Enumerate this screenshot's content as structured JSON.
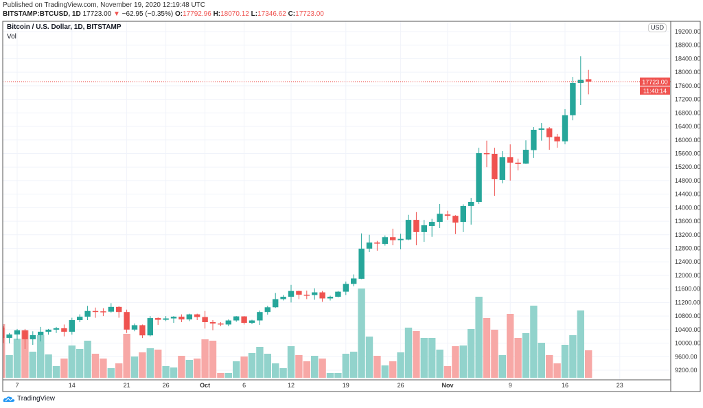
{
  "header": {
    "published": "Published on TradingView.com, November 19, 2020 12:19:48 UTC",
    "symbol": "BITSTAMP:BTCUSD, 1D",
    "last": "17723.00",
    "change": "−62.95 (−0.35%)",
    "o_label": "O:",
    "o": "17792.96",
    "h_label": "H:",
    "h": "18070.12",
    "l_label": "L:",
    "l": "17346.62",
    "c_label": "C:",
    "c": "17723.00",
    "down_icon": "triangle-down-icon"
  },
  "pane": {
    "title": "Bitcoin / U.S. Dollar, 1D, BITSTAMP",
    "vol_label": "Vol",
    "currency": "USD"
  },
  "price_marker": {
    "price": "17723.00",
    "countdown": "11:40:14"
  },
  "footer": {
    "brand": "TradingView"
  },
  "colors": {
    "up": "#26a69a",
    "down": "#ef5350",
    "vol_up": "#92d3cc",
    "vol_down": "#f7a8a6"
  },
  "chart_data": {
    "type": "candlestick",
    "title": "Bitcoin / U.S. Dollar, 1D, BITSTAMP",
    "ylim": [
      9000,
      19300
    ],
    "y_ticks": [
      "9200.00",
      "9600.00",
      "10000.00",
      "10400.00",
      "10800.00",
      "11200.00",
      "11600.00",
      "12000.00",
      "12400.00",
      "12800.00",
      "13200.00",
      "13600.00",
      "14000.00",
      "14400.00",
      "14800.00",
      "15200.00",
      "15600.00",
      "16000.00",
      "16400.00",
      "16800.00",
      "17200.00",
      "17600.00",
      "18000.00",
      "18400.00",
      "18800.00",
      "19200.00"
    ],
    "x_ticks": [
      {
        "label": "7",
        "date": "2020-09-07"
      },
      {
        "label": "14",
        "date": "2020-09-14"
      },
      {
        "label": "21",
        "date": "2020-09-21"
      },
      {
        "label": "26",
        "date": "2020-09-26"
      },
      {
        "label": "Oct",
        "date": "2020-10-01"
      },
      {
        "label": "6",
        "date": "2020-10-06"
      },
      {
        "label": "12",
        "date": "2020-10-12"
      },
      {
        "label": "19",
        "date": "2020-10-19"
      },
      {
        "label": "26",
        "date": "2020-10-26"
      },
      {
        "label": "Nov",
        "date": "2020-11-01"
      },
      {
        "label": "9",
        "date": "2020-11-09"
      },
      {
        "label": "16",
        "date": "2020-11-16"
      },
      {
        "label": "23",
        "date": "2020-11-23"
      }
    ],
    "grid": true,
    "columns": [
      "date",
      "open",
      "high",
      "low",
      "close",
      "volume_relative"
    ],
    "candles": [
      [
        "2020-09-05",
        10459,
        10500,
        10000,
        10155,
        78
      ],
      [
        "2020-09-06",
        10155,
        10300,
        9993,
        10256,
        33
      ],
      [
        "2020-09-07",
        10256,
        10420,
        10100,
        10378,
        57
      ],
      [
        "2020-09-08",
        10378,
        10420,
        9830,
        10114,
        69
      ],
      [
        "2020-09-09",
        10114,
        10350,
        9950,
        10236,
        38
      ],
      [
        "2020-09-10",
        10236,
        10480,
        10050,
        10337,
        62
      ],
      [
        "2020-09-11",
        10337,
        10420,
        10250,
        10398,
        34
      ],
      [
        "2020-09-12",
        10398,
        10480,
        10300,
        10440,
        17
      ],
      [
        "2020-09-13",
        10440,
        10550,
        10200,
        10337,
        28
      ],
      [
        "2020-09-14",
        10337,
        10750,
        10250,
        10680,
        47
      ],
      [
        "2020-09-15",
        10680,
        10850,
        10620,
        10780,
        42
      ],
      [
        "2020-09-16",
        10780,
        11100,
        10680,
        10950,
        54
      ],
      [
        "2020-09-17",
        10950,
        11050,
        10750,
        10940,
        35
      ],
      [
        "2020-09-18",
        10940,
        11030,
        10800,
        10930,
        28
      ],
      [
        "2020-09-19",
        10930,
        11180,
        10900,
        11070,
        14
      ],
      [
        "2020-09-20",
        11070,
        11090,
        10750,
        10920,
        21
      ],
      [
        "2020-09-21",
        10920,
        10990,
        10300,
        10400,
        64
      ],
      [
        "2020-09-22",
        10400,
        10580,
        10350,
        10530,
        31
      ],
      [
        "2020-09-23",
        10530,
        10550,
        10150,
        10230,
        37
      ],
      [
        "2020-09-24",
        10230,
        10800,
        10200,
        10740,
        43
      ],
      [
        "2020-09-25",
        10740,
        10760,
        10540,
        10690,
        41
      ],
      [
        "2020-09-26",
        10690,
        10800,
        10650,
        10730,
        17
      ],
      [
        "2020-09-27",
        10730,
        10800,
        10600,
        10780,
        15
      ],
      [
        "2020-09-28",
        10780,
        10850,
        10620,
        10700,
        32
      ],
      [
        "2020-09-29",
        10700,
        10870,
        10650,
        10850,
        26
      ],
      [
        "2020-09-30",
        10850,
        10870,
        10680,
        10770,
        28
      ],
      [
        "2020-10-01",
        10770,
        10950,
        10430,
        10620,
        56
      ],
      [
        "2020-10-02",
        10620,
        10680,
        10380,
        10580,
        54
      ],
      [
        "2020-10-03",
        10580,
        10620,
        10500,
        10550,
        7
      ],
      [
        "2020-10-04",
        10550,
        10700,
        10500,
        10670,
        7
      ],
      [
        "2020-10-05",
        10670,
        10800,
        10630,
        10790,
        24
      ],
      [
        "2020-10-06",
        10790,
        10800,
        10550,
        10600,
        31
      ],
      [
        "2020-10-07",
        10600,
        10690,
        10560,
        10670,
        36
      ],
      [
        "2020-10-08",
        10670,
        10960,
        10540,
        10920,
        45
      ],
      [
        "2020-10-09",
        10920,
        11100,
        10840,
        11060,
        35
      ],
      [
        "2020-10-10",
        11060,
        11480,
        11040,
        11300,
        21
      ],
      [
        "2020-10-11",
        11300,
        11420,
        11260,
        11370,
        14
      ],
      [
        "2020-10-12",
        11370,
        11720,
        11200,
        11540,
        46
      ],
      [
        "2020-10-13",
        11540,
        11550,
        11300,
        11430,
        33
      ],
      [
        "2020-10-14",
        11430,
        11550,
        11300,
        11420,
        24
      ],
      [
        "2020-10-15",
        11420,
        11620,
        11280,
        11500,
        32
      ],
      [
        "2020-10-16",
        11500,
        11540,
        11220,
        11320,
        28
      ],
      [
        "2020-10-17",
        11320,
        11400,
        11260,
        11370,
        7
      ],
      [
        "2020-10-18",
        11370,
        11540,
        11350,
        11520,
        7
      ],
      [
        "2020-10-19",
        11520,
        11820,
        11420,
        11750,
        35
      ],
      [
        "2020-10-20",
        11750,
        12030,
        11680,
        11910,
        38
      ],
      [
        "2020-10-21",
        11900,
        13240,
        11890,
        12790,
        130
      ],
      [
        "2020-10-22",
        12790,
        13200,
        12690,
        12970,
        60
      ],
      [
        "2020-10-23",
        12970,
        13020,
        12730,
        12950,
        32
      ],
      [
        "2020-10-24",
        12930,
        13180,
        12880,
        13130,
        18
      ],
      [
        "2020-10-25",
        13130,
        13380,
        12890,
        13040,
        24
      ],
      [
        "2020-10-26",
        13040,
        13230,
        12770,
        13080,
        37
      ],
      [
        "2020-10-27",
        13060,
        13790,
        13040,
        13640,
        73
      ],
      [
        "2020-10-28",
        13640,
        13870,
        12890,
        13280,
        68
      ],
      [
        "2020-10-29",
        13280,
        13640,
        12990,
        13480,
        58
      ],
      [
        "2020-10-30",
        13460,
        13670,
        13140,
        13580,
        58
      ],
      [
        "2020-10-31",
        13580,
        14110,
        13400,
        13820,
        41
      ],
      [
        "2020-11-01",
        13800,
        13910,
        13640,
        13760,
        17
      ],
      [
        "2020-11-02",
        13760,
        13780,
        13220,
        13560,
        46
      ],
      [
        "2020-11-03",
        13580,
        14100,
        13280,
        14050,
        47
      ],
      [
        "2020-11-04",
        14050,
        14290,
        13500,
        14170,
        71
      ],
      [
        "2020-11-05",
        14170,
        15770,
        14110,
        15610,
        118
      ],
      [
        "2020-11-06",
        15610,
        15980,
        15200,
        15590,
        87
      ],
      [
        "2020-11-07",
        15590,
        15770,
        14350,
        14840,
        70
      ],
      [
        "2020-11-08",
        14820,
        15670,
        14720,
        15490,
        33
      ],
      [
        "2020-11-09",
        15490,
        15870,
        14800,
        15330,
        93
      ],
      [
        "2020-11-10",
        15330,
        15450,
        15100,
        15290,
        58
      ],
      [
        "2020-11-11",
        15300,
        15990,
        15290,
        15710,
        65
      ],
      [
        "2020-11-12",
        15700,
        16380,
        15470,
        16300,
        105
      ],
      [
        "2020-11-13",
        16300,
        16500,
        15980,
        16340,
        51
      ],
      [
        "2020-11-14",
        16340,
        16380,
        15710,
        16080,
        33
      ],
      [
        "2020-11-15",
        16100,
        16180,
        15770,
        15960,
        21
      ],
      [
        "2020-11-16",
        15960,
        16910,
        15870,
        16730,
        48
      ],
      [
        "2020-11-17",
        16730,
        17860,
        16580,
        17680,
        62
      ],
      [
        "2020-11-18",
        17680,
        18470,
        17030,
        17780,
        98
      ],
      [
        "2020-11-19",
        17792.96,
        18070.12,
        17346.62,
        17723.0,
        40
      ]
    ]
  }
}
